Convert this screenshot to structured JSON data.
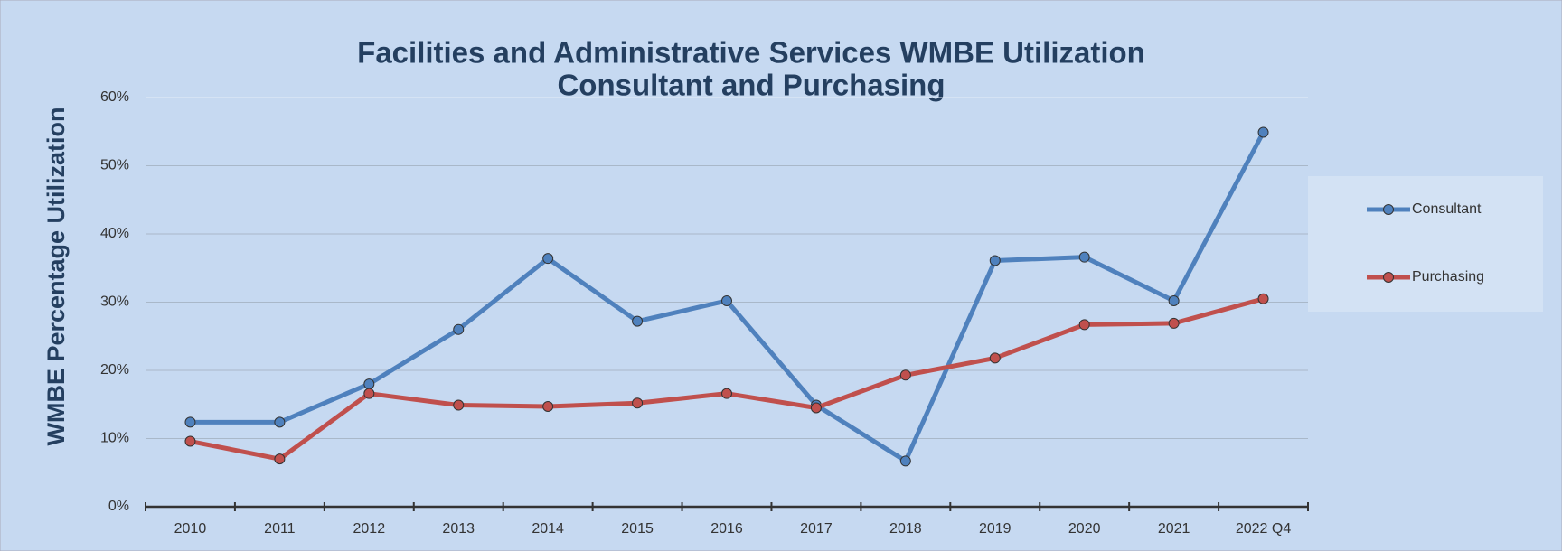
{
  "chart_data": {
    "type": "line",
    "title": "Facilities and Administrative Services WMBE Utilization",
    "subtitle": "Consultant and Purchasing",
    "y_label": "WMBE Percentage Utilization",
    "categories": [
      "2010",
      "2011",
      "2012",
      "2013",
      "2014",
      "2015",
      "2016",
      "2017",
      "2018",
      "2019",
      "2020",
      "2021",
      "2022 Q4"
    ],
    "series": [
      {
        "name": "Consultant",
        "color": "#4f81bd",
        "values": [
          12.4,
          12.4,
          18.0,
          26.0,
          36.4,
          27.2,
          30.2,
          14.9,
          6.7,
          36.1,
          36.6,
          30.2,
          54.9
        ]
      },
      {
        "name": "Purchasing",
        "color": "#c0504d",
        "values": [
          9.6,
          7.0,
          16.6,
          14.9,
          14.7,
          15.2,
          16.6,
          14.5,
          19.3,
          21.8,
          26.7,
          26.9,
          30.5
        ]
      }
    ],
    "ylim": [
      0,
      60
    ],
    "yticks": [
      {
        "value": 0,
        "label": "0%"
      },
      {
        "value": 10,
        "label": "10%"
      },
      {
        "value": 20,
        "label": "20%"
      },
      {
        "value": 30,
        "label": "30%"
      },
      {
        "value": 40,
        "label": "40%"
      },
      {
        "value": 50,
        "label": "50%"
      },
      {
        "value": 60,
        "label": "60%"
      }
    ],
    "grid": true,
    "legend": "right"
  }
}
